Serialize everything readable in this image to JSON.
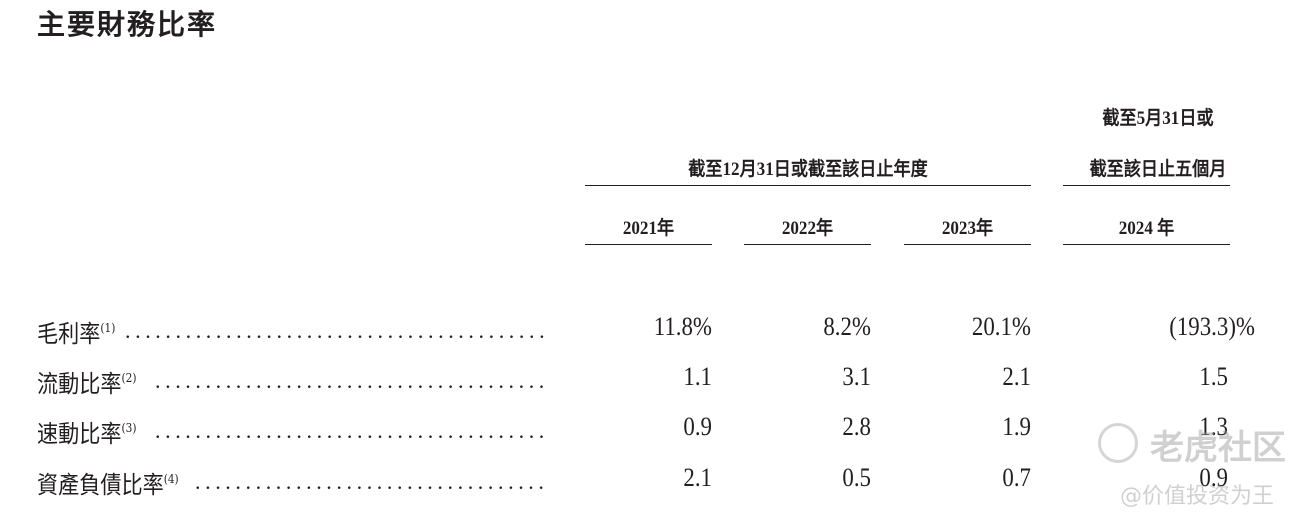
{
  "title": "主要財務比率",
  "header": {
    "group_fy": "截至12月31日或截至該日止年度",
    "group_5m_line1": "截至5月31日或",
    "group_5m_line2": "截至該日止五個月",
    "years": [
      "2021年",
      "2022年",
      "2023年",
      "2024 年"
    ]
  },
  "rows": [
    {
      "label": "毛利率",
      "note": "(1)",
      "values": [
        "11.8%",
        "8.2%",
        "20.1%",
        "(193.3)%"
      ]
    },
    {
      "label": "流動比率",
      "note": "(2)",
      "values": [
        "1.1",
        "3.1",
        "2.1",
        "1.5"
      ]
    },
    {
      "label": "速動比率",
      "note": "(3)",
      "values": [
        "0.9",
        "2.8",
        "1.9",
        "1.3"
      ]
    },
    {
      "label": "資產負債比率",
      "note": "(4)",
      "values": [
        "2.1",
        "0.5",
        "0.7",
        "0.9"
      ]
    }
  ],
  "watermark": {
    "brand": "老虎社区",
    "author": "@价值投资为王"
  }
}
